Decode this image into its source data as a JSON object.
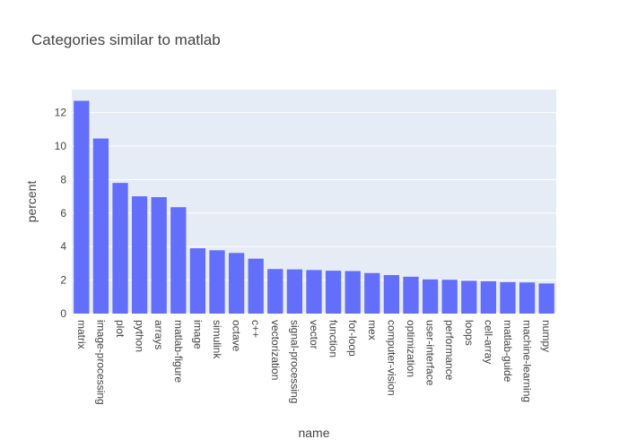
{
  "chart_data": {
    "type": "bar",
    "title": "Categories similar to matlab",
    "xlabel": "name",
    "ylabel": "percent",
    "categories": [
      "matrix",
      "image-processing",
      "plot",
      "python",
      "arrays",
      "matlab-figure",
      "image",
      "simulink",
      "octave",
      "c++",
      "vectorization",
      "signal-processing",
      "vector",
      "function",
      "for-loop",
      "mex",
      "computer-vision",
      "optimization",
      "user-interface",
      "performance",
      "loops",
      "cell-array",
      "matlab-guide",
      "machine-learning",
      "numpy"
    ],
    "values": [
      12.7,
      10.45,
      7.8,
      7.0,
      6.95,
      6.35,
      3.9,
      3.78,
      3.62,
      3.28,
      2.66,
      2.64,
      2.6,
      2.56,
      2.54,
      2.42,
      2.3,
      2.2,
      2.04,
      2.02,
      1.96,
      1.93,
      1.88,
      1.86,
      1.8
    ],
    "yticks": [
      0,
      2,
      4,
      6,
      8,
      10,
      12
    ],
    "ylim": [
      0,
      13.37
    ],
    "grid": true,
    "colors": {
      "bar": "#636efa",
      "plot_bg": "#e5ecf6",
      "grid": "#ffffff",
      "text": "#444444"
    }
  }
}
